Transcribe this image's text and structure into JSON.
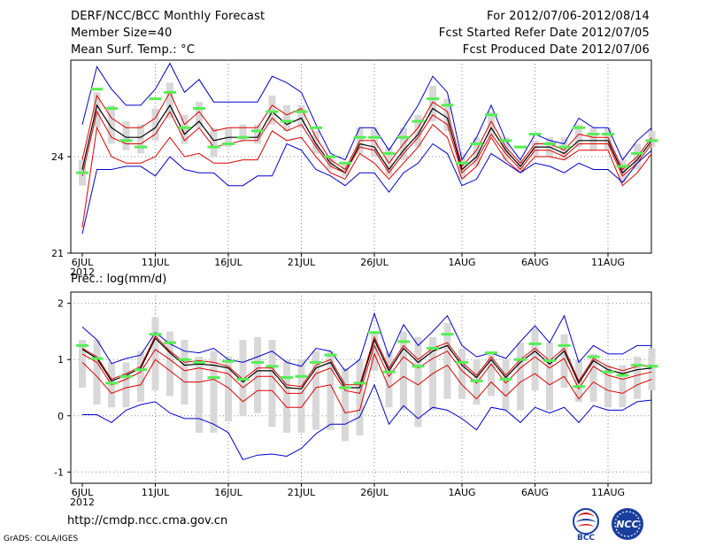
{
  "header": {
    "title": "DERF/NCC/BCC Monthly Forecast",
    "member_size": "Member Size=40",
    "variable": "Mean Surf. Temp.: °C",
    "period": "For 2012/07/06-2012/08/14",
    "refer_date": "Fcst Started Refer Date 2012/07/05",
    "produced_date": "Fcst Produced Date 2012/07/06"
  },
  "footer": {
    "url": "http://cmdp.ncc.cma.gov.cn",
    "grads": "GrADS: COLA/IGES",
    "logo_bcc": "BCC",
    "logo_ncc": "NCC"
  },
  "colors": {
    "box": "#d8d8d8",
    "green": "#55ee55",
    "max_min": "#0000cc",
    "percentile": "#dd0000",
    "mean": "#000000"
  },
  "chart_data": [
    {
      "type": "line",
      "title": "Mean Surf. Temp.: °C",
      "x": [
        "6JUL",
        "7JUL",
        "8JUL",
        "9JUL",
        "10JUL",
        "11JUL",
        "12JUL",
        "13JUL",
        "14JUL",
        "15JUL",
        "16JUL",
        "17JUL",
        "18JUL",
        "19JUL",
        "20JUL",
        "21JUL",
        "22JUL",
        "23JUL",
        "24JUL",
        "25JUL",
        "26JUL",
        "27JUL",
        "28JUL",
        "29JUL",
        "30JUL",
        "31JUL",
        "1AUG",
        "2AUG",
        "3AUG",
        "4AUG",
        "5AUG",
        "6AUG",
        "7AUG",
        "8AUG",
        "9AUG",
        "10AUG",
        "11AUG",
        "12AUG",
        "13AUG",
        "14AUG"
      ],
      "x_ticks": [
        "6JUL",
        "11JUL",
        "16JUL",
        "21JUL",
        "26JUL",
        "1AUG",
        "6AUG",
        "11AUG"
      ],
      "x_sublabel": "2012",
      "ylim": [
        21,
        27
      ],
      "y_ticks": [
        21,
        24
      ],
      "grid": true,
      "series": [
        {
          "name": "max",
          "values": [
            25.0,
            26.8,
            26.1,
            25.6,
            25.6,
            26.1,
            26.9,
            26.0,
            26.4,
            25.7,
            25.7,
            25.7,
            25.7,
            26.5,
            26.3,
            26.0,
            25.0,
            24.1,
            23.9,
            24.9,
            24.9,
            24.2,
            24.9,
            25.6,
            26.5,
            26.0,
            23.9,
            24.6,
            25.6,
            24.5,
            23.9,
            24.7,
            24.5,
            24.4,
            25.2,
            24.9,
            24.9,
            23.9,
            24.5,
            24.9
          ]
        },
        {
          "name": "p90",
          "values": [
            23.9,
            25.9,
            25.2,
            24.9,
            24.9,
            25.2,
            26.0,
            25.0,
            25.4,
            24.8,
            24.9,
            24.9,
            24.9,
            25.6,
            25.3,
            25.5,
            24.6,
            23.9,
            23.6,
            24.5,
            24.5,
            23.8,
            24.4,
            24.9,
            25.7,
            25.4,
            23.7,
            24.2,
            25.1,
            24.3,
            23.8,
            24.4,
            24.4,
            24.2,
            24.7,
            24.6,
            24.6,
            23.6,
            24.0,
            24.6
          ]
        },
        {
          "name": "mean",
          "values": [
            23.6,
            25.6,
            24.9,
            24.6,
            24.6,
            24.9,
            25.6,
            24.7,
            25.1,
            24.5,
            24.6,
            24.6,
            24.6,
            25.4,
            25.0,
            25.2,
            24.4,
            23.8,
            23.5,
            24.4,
            24.3,
            23.6,
            24.2,
            24.7,
            25.5,
            25.2,
            23.6,
            24.0,
            24.9,
            24.2,
            23.7,
            24.3,
            24.3,
            24.1,
            24.5,
            24.5,
            24.5,
            23.5,
            23.9,
            24.5
          ]
        },
        {
          "name": "p10",
          "values": [
            23.4,
            25.4,
            24.6,
            24.4,
            24.4,
            24.7,
            25.4,
            24.5,
            24.9,
            24.3,
            24.4,
            24.5,
            24.5,
            25.2,
            24.8,
            25.0,
            24.3,
            23.7,
            23.5,
            24.3,
            24.2,
            23.5,
            24.1,
            24.6,
            25.3,
            25.0,
            23.5,
            23.9,
            24.7,
            24.1,
            23.6,
            24.2,
            24.2,
            24.0,
            24.4,
            24.4,
            24.4,
            23.4,
            23.8,
            24.4
          ]
        },
        {
          "name": "p05",
          "values": [
            21.8,
            24.9,
            24.0,
            23.8,
            23.8,
            24.0,
            24.6,
            24.0,
            24.1,
            23.8,
            23.8,
            23.9,
            23.9,
            24.8,
            24.5,
            24.6,
            24.0,
            23.5,
            23.3,
            24.1,
            23.8,
            23.3,
            23.8,
            24.3,
            25.0,
            24.6,
            23.3,
            23.7,
            24.6,
            23.9,
            23.5,
            24.0,
            24.0,
            23.9,
            24.2,
            24.2,
            24.2,
            23.1,
            23.5,
            24.1
          ]
        },
        {
          "name": "min",
          "values": [
            21.6,
            23.6,
            23.6,
            23.7,
            23.7,
            23.4,
            24.0,
            23.6,
            23.5,
            23.5,
            23.1,
            23.1,
            23.4,
            23.4,
            24.4,
            24.2,
            23.6,
            23.4,
            23.1,
            23.5,
            23.5,
            22.9,
            23.5,
            23.8,
            24.4,
            24.1,
            23.1,
            23.3,
            24.1,
            23.8,
            23.5,
            23.8,
            23.7,
            23.5,
            23.8,
            23.6,
            23.6,
            23.2,
            23.8,
            24.2
          ]
        }
      ],
      "boxes": {
        "high": [
          23.9,
          26.0,
          25.6,
          25.1,
          25.0,
          25.5,
          26.3,
          25.3,
          25.7,
          24.9,
          24.9,
          25.0,
          25.0,
          25.9,
          25.6,
          25.6,
          24.8,
          24.0,
          23.8,
          24.9,
          24.9,
          24.3,
          24.9,
          25.3,
          26.2,
          25.8,
          24.1,
          24.6,
          25.4,
          24.6,
          23.9,
          24.5,
          24.6,
          24.6,
          25.0,
          24.9,
          24.9,
          23.9,
          24.4,
          24.8
        ],
        "low": [
          23.1,
          24.9,
          24.4,
          24.2,
          24.1,
          24.5,
          25.2,
          24.4,
          24.9,
          24.0,
          24.3,
          24.5,
          24.4,
          25.0,
          24.8,
          24.9,
          24.1,
          23.6,
          23.4,
          24.1,
          24.0,
          23.4,
          23.9,
          24.3,
          25.1,
          24.8,
          23.3,
          23.7,
          24.6,
          23.9,
          23.5,
          24.0,
          24.0,
          23.9,
          24.3,
          24.2,
          24.2,
          23.2,
          23.6,
          24.3
        ],
        "green": [
          23.5,
          26.1,
          25.5,
          24.5,
          24.3,
          25.8,
          26.0,
          24.9,
          25.5,
          24.3,
          24.4,
          24.6,
          24.8,
          25.4,
          25.1,
          25.4,
          24.9,
          24.0,
          23.8,
          24.6,
          24.6,
          24.1,
          24.6,
          25.1,
          25.8,
          25.6,
          23.8,
          24.4,
          25.3,
          24.5,
          24.3,
          24.7,
          24.4,
          24.3,
          24.9,
          24.7,
          24.7,
          23.7,
          24.1,
          24.5
        ]
      }
    },
    {
      "type": "line",
      "title": "Prec.: log(mm/d)",
      "x": [
        "6JUL",
        "7JUL",
        "8JUL",
        "9JUL",
        "10JUL",
        "11JUL",
        "12JUL",
        "13JUL",
        "14JUL",
        "15JUL",
        "16JUL",
        "17JUL",
        "18JUL",
        "19JUL",
        "20JUL",
        "21JUL",
        "22JUL",
        "23JUL",
        "24JUL",
        "25JUL",
        "26JUL",
        "27JUL",
        "28JUL",
        "29JUL",
        "30JUL",
        "31JUL",
        "1AUG",
        "2AUG",
        "3AUG",
        "4AUG",
        "5AUG",
        "6AUG",
        "7AUG",
        "8AUG",
        "9AUG",
        "10AUG",
        "11AUG",
        "12AUG",
        "13AUG",
        "14AUG"
      ],
      "x_ticks": [
        "6JUL",
        "11JUL",
        "16JUL",
        "21JUL",
        "26JUL",
        "1AUG",
        "6AUG",
        "11AUG"
      ],
      "x_sublabel": "2012",
      "ylim": [
        -1.2,
        2.2
      ],
      "y_ticks": [
        -1,
        0,
        1,
        2
      ],
      "grid": true,
      "series": [
        {
          "name": "max",
          "values": [
            1.58,
            1.35,
            0.93,
            1.02,
            1.08,
            1.48,
            1.28,
            1.15,
            1.12,
            1.2,
            1.0,
            0.95,
            1.05,
            1.15,
            0.95,
            0.88,
            1.2,
            1.15,
            0.8,
            1.0,
            1.82,
            1.05,
            1.62,
            1.25,
            1.5,
            1.78,
            1.25,
            1.05,
            1.12,
            1.02,
            1.32,
            1.6,
            1.3,
            1.78,
            0.95,
            1.25,
            1.1,
            1.1,
            1.25,
            1.25
          ]
        },
        {
          "name": "p90",
          "values": [
            1.2,
            1.05,
            0.65,
            0.75,
            0.88,
            1.42,
            1.15,
            0.95,
            0.98,
            0.95,
            0.88,
            0.65,
            0.85,
            0.85,
            0.55,
            0.52,
            0.9,
            1.0,
            0.55,
            0.55,
            1.4,
            0.85,
            1.25,
            1.0,
            1.2,
            1.3,
            0.95,
            0.72,
            1.05,
            0.72,
            1.0,
            1.2,
            0.98,
            1.2,
            0.62,
            1.02,
            0.88,
            0.8,
            0.88,
            0.9
          ]
        },
        {
          "name": "mean",
          "values": [
            1.18,
            1.02,
            0.62,
            0.72,
            0.85,
            1.38,
            1.12,
            0.9,
            0.92,
            0.9,
            0.85,
            0.6,
            0.8,
            0.8,
            0.5,
            0.48,
            0.85,
            0.95,
            0.5,
            0.5,
            1.35,
            0.8,
            1.2,
            0.95,
            1.15,
            1.25,
            0.9,
            0.68,
            1.0,
            0.68,
            0.95,
            1.15,
            0.92,
            1.15,
            0.58,
            0.98,
            0.82,
            0.75,
            0.82,
            0.85
          ]
        },
        {
          "name": "p10",
          "values": [
            1.1,
            0.95,
            0.55,
            0.65,
            0.78,
            1.18,
            1.0,
            0.8,
            0.85,
            0.8,
            0.75,
            0.5,
            0.7,
            0.7,
            0.4,
            0.4,
            0.75,
            0.85,
            0.45,
            0.4,
            1.25,
            0.7,
            1.05,
            0.85,
            1.02,
            1.15,
            0.8,
            0.58,
            0.92,
            0.58,
            0.85,
            1.05,
            0.85,
            1.02,
            0.48,
            0.88,
            0.72,
            0.65,
            0.72,
            0.78
          ]
        },
        {
          "name": "p05",
          "values": [
            0.95,
            0.7,
            0.4,
            0.5,
            0.55,
            1.0,
            0.8,
            0.6,
            0.6,
            0.65,
            0.5,
            0.25,
            0.45,
            0.45,
            0.15,
            0.15,
            0.5,
            0.55,
            0.05,
            0.1,
            1.1,
            0.5,
            0.7,
            0.55,
            0.75,
            0.9,
            0.55,
            0.3,
            0.6,
            0.35,
            0.6,
            0.75,
            0.55,
            0.7,
            0.3,
            0.6,
            0.45,
            0.4,
            0.55,
            0.65
          ]
        },
        {
          "name": "min",
          "values": [
            0.02,
            0.02,
            -0.12,
            0.1,
            0.2,
            0.25,
            0.05,
            -0.05,
            -0.05,
            -0.15,
            -0.3,
            -0.78,
            -0.7,
            -0.68,
            -0.72,
            -0.58,
            -0.32,
            -0.15,
            -0.15,
            -0.02,
            0.55,
            -0.15,
            0.18,
            -0.05,
            0.15,
            0.1,
            -0.05,
            -0.25,
            0.15,
            0.1,
            -0.12,
            0.15,
            0.05,
            0.15,
            -0.12,
            0.18,
            0.1,
            0.1,
            0.25,
            0.28
          ]
        }
      ],
      "boxes": {
        "high": [
          1.35,
          1.35,
          0.95,
          0.95,
          1.15,
          1.75,
          1.5,
          1.35,
          1.05,
          1.15,
          1.05,
          1.35,
          1.4,
          1.35,
          1.0,
          1.0,
          1.15,
          1.15,
          0.85,
          1.0,
          1.5,
          1.15,
          1.5,
          1.4,
          1.4,
          1.65,
          1.2,
          1.0,
          1.15,
          1.0,
          1.3,
          1.55,
          1.3,
          1.45,
          1.0,
          1.1,
          0.9,
          0.9,
          1.05,
          1.2
        ],
        "low": [
          0.5,
          0.2,
          0.15,
          0.15,
          0.25,
          0.45,
          0.35,
          0.2,
          -0.3,
          -0.3,
          -0.1,
          0.0,
          0.05,
          -0.2,
          -0.3,
          -0.3,
          -0.25,
          -0.25,
          -0.45,
          -0.35,
          0.8,
          0.15,
          0.1,
          -0.2,
          0.1,
          0.3,
          0.3,
          0.2,
          0.35,
          0.1,
          0.1,
          0.45,
          0.1,
          0.5,
          0.25,
          0.25,
          0.15,
          0.15,
          0.3,
          0.45
        ],
        "green": [
          1.25,
          1.02,
          0.58,
          0.7,
          0.82,
          1.45,
          1.3,
          1.0,
          0.95,
          0.68,
          0.97,
          0.65,
          0.95,
          0.88,
          0.68,
          0.7,
          0.95,
          1.08,
          0.5,
          0.58,
          1.48,
          0.78,
          1.32,
          0.88,
          1.2,
          1.45,
          0.95,
          0.62,
          1.12,
          0.65,
          1.0,
          1.28,
          0.98,
          1.25,
          0.52,
          1.05,
          0.78,
          0.72,
          0.9,
          0.88
        ]
      }
    }
  ]
}
